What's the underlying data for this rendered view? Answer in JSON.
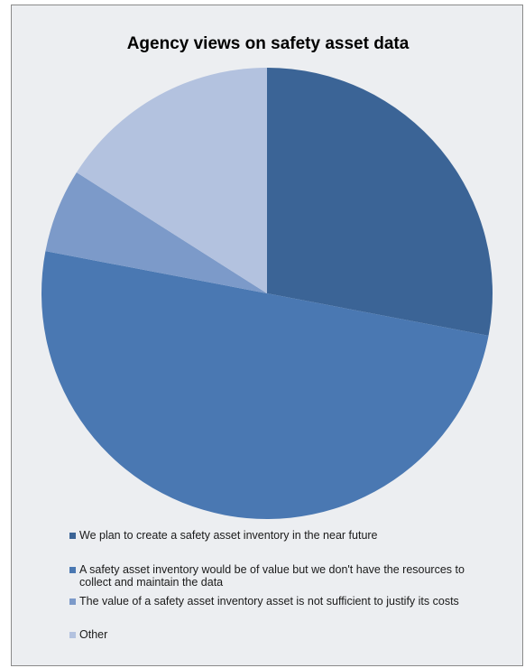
{
  "chart_data": {
    "type": "pie",
    "title": "Agency views on safety asset data",
    "slices": [
      {
        "label": "We plan to create a safety asset inventory in the near future",
        "value": 28,
        "color": "#3b6496"
      },
      {
        "label": "A safety asset inventory would be of value but we don't have the resources to collect and maintain the data",
        "value": 50,
        "color": "#4a78b2"
      },
      {
        "label": "The value of a safety asset inventory asset is not sufficient to justify its costs",
        "value": 6,
        "color": "#7c9ac9"
      },
      {
        "label": "Other",
        "value": 16,
        "color": "#b3c2df"
      }
    ],
    "legend_position": "bottom"
  }
}
